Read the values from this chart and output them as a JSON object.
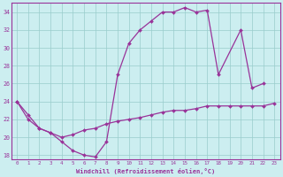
{
  "xlabel": "Windchill (Refroidissement éolien,°C)",
  "bg_color": "#cceef0",
  "line_color": "#993399",
  "grid_color": "#99cccc",
  "xlim": [
    -0.5,
    23.5
  ],
  "ylim": [
    17.5,
    35.0
  ],
  "yticks": [
    18,
    20,
    22,
    24,
    26,
    28,
    30,
    32,
    34
  ],
  "xticks": [
    0,
    1,
    2,
    3,
    4,
    5,
    6,
    7,
    8,
    9,
    10,
    11,
    12,
    13,
    14,
    15,
    16,
    17,
    18,
    19,
    20,
    21,
    22,
    23
  ],
  "series1_x": [
    0,
    1,
    2,
    3,
    4,
    5,
    6,
    7,
    8,
    9,
    10,
    11,
    12,
    13,
    14,
    15,
    16,
    17,
    18,
    20,
    21,
    22
  ],
  "series1_y": [
    24.0,
    22.5,
    21.0,
    20.5,
    19.5,
    18.5,
    18.0,
    17.8,
    19.5,
    27.0,
    30.5,
    32.0,
    33.0,
    34.0,
    34.0,
    34.5,
    34.0,
    34.2,
    27.0,
    32.0,
    25.5,
    26.0
  ],
  "series2_x": [
    0,
    1,
    2,
    3,
    4,
    5,
    6,
    7,
    8,
    9,
    10,
    11,
    12,
    13,
    14,
    15,
    16,
    17,
    18,
    19,
    20,
    21,
    22,
    23
  ],
  "series2_y": [
    24.0,
    22.0,
    21.0,
    20.5,
    20.0,
    20.3,
    20.8,
    21.0,
    21.5,
    21.8,
    22.0,
    22.2,
    22.5,
    22.8,
    23.0,
    23.0,
    23.2,
    23.5,
    23.5,
    23.5,
    23.5,
    23.5,
    23.5,
    23.8
  ]
}
